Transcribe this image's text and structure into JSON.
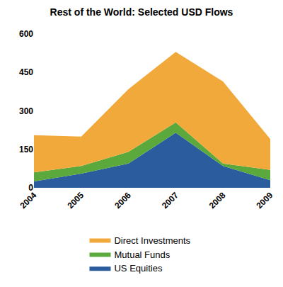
{
  "chart_data": {
    "type": "area",
    "title": "Rest of the World: Selected USD Flows",
    "x": [
      2004,
      2005,
      2006,
      2007,
      2008,
      2009
    ],
    "series": [
      {
        "name": "US Equities",
        "color": "#2b5c9e",
        "values": [
          25,
          55,
          95,
          215,
          85,
          30
        ]
      },
      {
        "name": "Mutual Funds",
        "color": "#5ba83c",
        "values": [
          35,
          30,
          45,
          40,
          10,
          40
        ]
      },
      {
        "name": "Direct Investments",
        "color": "#f2a93b",
        "values": [
          145,
          115,
          245,
          275,
          320,
          120
        ]
      }
    ],
    "stacked": true,
    "xlim": [
      2004,
      2009
    ],
    "xticks": [
      2004,
      2005,
      2006,
      2007,
      2008,
      2009
    ],
    "ylim": [
      0,
      600
    ],
    "yticks": [
      0,
      150,
      300,
      450,
      600
    ],
    "grid": false,
    "legend": "bottom"
  }
}
